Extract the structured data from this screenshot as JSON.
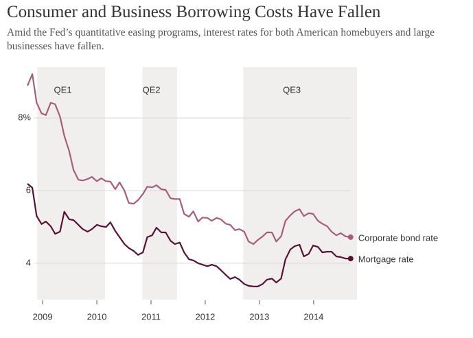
{
  "chart_data": {
    "type": "line",
    "title": "Consumer and Business Borrowing Costs Have Fallen",
    "subtitle": "Amid the Fed’s quantitative easing programs, interest rates for both American homebuyers and large businesses have fallen.",
    "x": [
      2008.72,
      2008.81,
      2008.89,
      2008.98,
      2009.06,
      2009.15,
      2009.23,
      2009.32,
      2009.4,
      2009.49,
      2009.57,
      2009.66,
      2009.74,
      2009.83,
      2009.91,
      2010.0,
      2010.08,
      2010.17,
      2010.25,
      2010.34,
      2010.42,
      2010.51,
      2010.59,
      2010.68,
      2010.76,
      2010.85,
      2010.93,
      2011.02,
      2011.1,
      2011.19,
      2011.27,
      2011.36,
      2011.44,
      2011.53,
      2011.61,
      2011.7,
      2011.78,
      2011.87,
      2011.95,
      2012.04,
      2012.12,
      2012.21,
      2012.29,
      2012.38,
      2012.46,
      2012.55,
      2012.63,
      2012.72,
      2012.8,
      2012.89,
      2012.97,
      2013.06,
      2013.14,
      2013.23,
      2013.31,
      2013.4,
      2013.48,
      2013.57,
      2013.65,
      2013.74,
      2013.82,
      2013.91,
      2013.99,
      2014.08,
      2014.16,
      2014.25,
      2014.33,
      2014.42,
      2014.5,
      2014.59,
      2014.67
    ],
    "series": [
      {
        "name": "Corporate bond rate",
        "color": "#a85c7c",
        "values": [
          8.89,
          9.21,
          8.42,
          8.13,
          8.08,
          8.42,
          8.38,
          8.04,
          7.51,
          7.09,
          6.57,
          6.3,
          6.28,
          6.32,
          6.38,
          6.26,
          6.34,
          6.26,
          6.25,
          6.04,
          6.23,
          6.0,
          5.66,
          5.64,
          5.74,
          5.91,
          6.11,
          6.09,
          6.15,
          6.04,
          6.02,
          5.79,
          5.77,
          5.77,
          5.36,
          5.28,
          5.43,
          5.15,
          5.26,
          5.25,
          5.17,
          5.25,
          5.21,
          5.09,
          5.06,
          4.91,
          4.94,
          4.87,
          4.6,
          4.53,
          4.64,
          4.74,
          4.85,
          4.85,
          4.6,
          4.74,
          5.17,
          5.32,
          5.43,
          5.49,
          5.3,
          5.38,
          5.36,
          5.17,
          5.09,
          5.02,
          4.87,
          4.77,
          4.83,
          4.74,
          4.72
        ]
      },
      {
        "name": "Mortgage rate",
        "color": "#5a1036",
        "values": [
          6.19,
          6.08,
          5.3,
          5.08,
          5.15,
          5.02,
          4.81,
          4.87,
          5.42,
          5.21,
          5.19,
          5.06,
          4.94,
          4.87,
          4.94,
          5.06,
          5.02,
          5.0,
          5.13,
          4.89,
          4.72,
          4.53,
          4.42,
          4.34,
          4.23,
          4.3,
          4.72,
          4.77,
          4.98,
          4.85,
          4.85,
          4.62,
          4.53,
          4.57,
          4.3,
          4.11,
          4.08,
          4.0,
          3.96,
          3.92,
          3.96,
          3.92,
          3.81,
          3.68,
          3.57,
          3.62,
          3.55,
          3.43,
          3.38,
          3.36,
          3.36,
          3.43,
          3.55,
          3.58,
          3.47,
          3.58,
          4.11,
          4.38,
          4.47,
          4.51,
          4.19,
          4.26,
          4.49,
          4.45,
          4.3,
          4.32,
          4.32,
          4.19,
          4.17,
          4.13,
          4.13
        ]
      }
    ],
    "annotations": [
      {
        "label": "QE1",
        "start": 2008.9,
        "end": 2010.15
      },
      {
        "label": "QE2",
        "start": 2010.84,
        "end": 2011.48
      },
      {
        "label": "QE3",
        "start": 2012.7,
        "end": 2014.8
      }
    ],
    "xlim": [
      2008.72,
      2014.8
    ],
    "xticks": [
      2009,
      2010,
      2011,
      2012,
      2013,
      2014
    ],
    "ylim": [
      3,
      9.4
    ],
    "yticks": [
      4,
      6,
      {
        "value": 8,
        "label": "8%"
      }
    ],
    "grid": true
  }
}
